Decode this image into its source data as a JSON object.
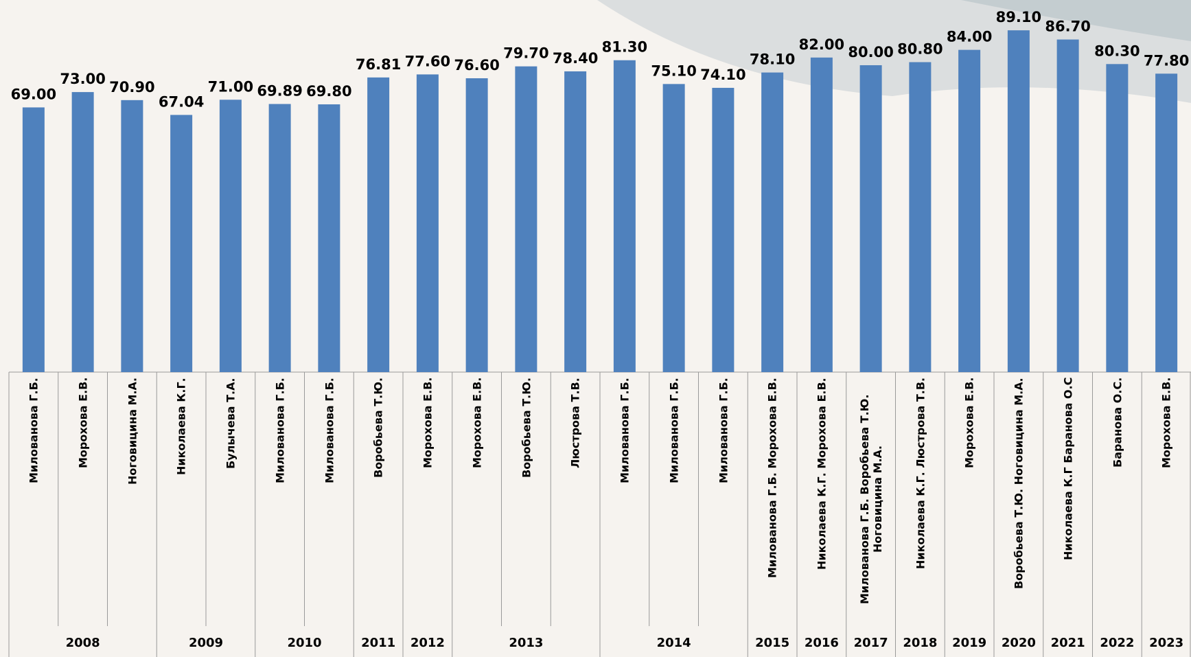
{
  "chart_data": {
    "type": "bar",
    "categories": [
      "Милованова Г.Б.",
      "Морохова Е.В.",
      "Ноговицина М.А.",
      "Николаева К.Г.",
      "Булычева Т.А.",
      "Милованова Г.Б.",
      "Милованова Г.Б.",
      "Воробьева Т.Ю.",
      "Морохова Е.В.",
      "Морохова Е.В.",
      "Воробьева Т.Ю.",
      "Люстрова Т.В.",
      "Милованова Г.Б.",
      "Милованова Г.Б.",
      "Милованова Г.Б.",
      "Милованова Г.Б. Морохова Е.В.",
      "Николаева К.Г. Морохова Е.В.",
      "Милованова Г.Б. Воробьева Т.Ю. Ноговицина М.А.",
      "Николаева К.Г. Люстрова Т.В.",
      "Морохова Е.В.",
      "Воробьева Т.Ю. Ноговицина М.А.",
      "Николаева К.Г Баранова О.С",
      "Баранова О.С.",
      "Морохова Е.В."
    ],
    "group_labels": [
      "2008",
      null,
      null,
      "2009",
      null,
      "2010",
      null,
      "2011",
      "2012",
      "2013",
      null,
      null,
      "2014",
      null,
      null,
      "2015",
      "2016",
      "2017",
      "2018",
      "2019",
      "2020",
      "2021",
      "2022",
      "2023"
    ],
    "values": [
      69.0,
      73.0,
      70.9,
      67.04,
      71.0,
      69.89,
      69.8,
      76.81,
      77.6,
      76.6,
      79.7,
      78.4,
      81.3,
      75.1,
      74.1,
      78.1,
      82.0,
      80.0,
      80.8,
      84.0,
      89.1,
      86.7,
      80.3,
      77.8
    ],
    "value_labels": [
      "69.00",
      "73.00",
      "70.90",
      "67.04",
      "71.00",
      "69.89",
      "69.80",
      "76.81",
      "77.60",
      "76.60",
      "79.70",
      "78.40",
      "81.30",
      "75.10",
      "74.10",
      "78.10",
      "82.00",
      "80.00",
      "80.80",
      "84.00",
      "89.10",
      "86.70",
      "80.30",
      "77.80"
    ],
    "color": "#4f81bd",
    "ylim": [
      0,
      97
    ]
  }
}
